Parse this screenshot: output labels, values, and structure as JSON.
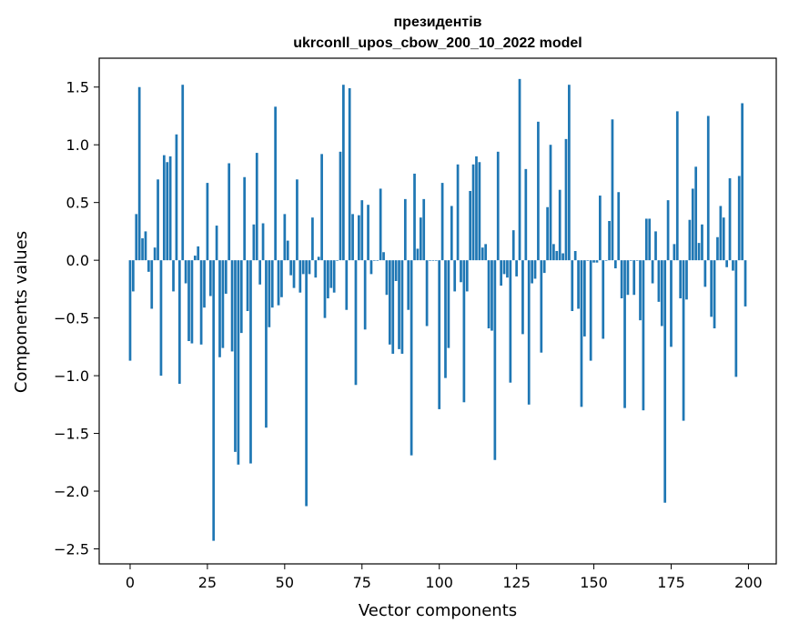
{
  "chart_data": {
    "type": "bar",
    "title_line1": "президентів",
    "title_line2": "ukrconll_upos_cbow_200_10_2022 model",
    "xlabel": "Vector components",
    "ylabel": "Components values",
    "xlim": [
      -10,
      209
    ],
    "ylim": [
      -2.63,
      1.75
    ],
    "xticks": [
      0,
      25,
      50,
      75,
      100,
      125,
      150,
      175,
      200
    ],
    "yticks": [
      -2.5,
      -2.0,
      -1.5,
      -1.0,
      -0.5,
      0.0,
      0.5,
      1.0,
      1.5
    ],
    "ytick_labels": [
      "−2.5",
      "−2.0",
      "−1.5",
      "−1.0",
      "−0.5",
      "0.0",
      "0.5",
      "1.0",
      "1.5"
    ],
    "bar_color": "#1f77b4",
    "grid": false,
    "values": [
      -0.87,
      -0.27,
      0.4,
      1.5,
      0.19,
      0.25,
      -0.1,
      -0.42,
      0.11,
      0.7,
      -1.0,
      0.91,
      0.85,
      0.9,
      -0.27,
      1.09,
      -1.07,
      1.52,
      -0.2,
      -0.7,
      -0.72,
      0.04,
      0.12,
      -0.73,
      -0.41,
      0.67,
      -0.31,
      -2.43,
      0.3,
      -0.84,
      -0.76,
      -0.29,
      0.84,
      -0.79,
      -1.66,
      -1.77,
      -0.63,
      0.72,
      -0.44,
      -1.76,
      0.31,
      0.93,
      -0.21,
      0.32,
      -1.45,
      -0.58,
      -0.41,
      1.33,
      -0.39,
      -0.32,
      0.4,
      0.17,
      -0.13,
      -0.24,
      0.7,
      -0.28,
      -0.12,
      -2.13,
      -0.12,
      0.37,
      -0.15,
      0.03,
      0.92,
      -0.5,
      -0.33,
      -0.24,
      -0.28,
      0.0,
      0.94,
      1.52,
      -0.43,
      1.49,
      0.4,
      -1.08,
      0.39,
      0.52,
      -0.6,
      0.48,
      -0.12,
      0.0,
      0.0,
      0.62,
      0.07,
      -0.3,
      -0.73,
      -0.81,
      -0.18,
      -0.77,
      -0.81,
      0.53,
      -0.43,
      -1.69,
      0.75,
      0.1,
      0.37,
      0.53,
      -0.57,
      0.0,
      0.0,
      0.0,
      -1.29,
      0.67,
      -1.02,
      -0.76,
      0.47,
      -0.27,
      0.83,
      -0.19,
      -1.23,
      -0.27,
      0.6,
      0.83,
      0.9,
      0.85,
      0.11,
      0.14,
      -0.59,
      -0.61,
      -1.73,
      0.94,
      -0.22,
      -0.12,
      -0.15,
      -1.06,
      0.26,
      -0.14,
      1.57,
      -0.64,
      0.79,
      -1.25,
      -0.2,
      -0.16,
      1.2,
      -0.8,
      -0.11,
      0.46,
      1.0,
      0.14,
      0.08,
      0.61,
      0.06,
      1.05,
      1.52,
      -0.44,
      0.08,
      -0.42,
      -1.27,
      -0.66,
      0.0,
      -0.87,
      -0.02,
      -0.02,
      0.56,
      -0.68,
      0.0,
      0.34,
      1.22,
      -0.07,
      0.59,
      -0.33,
      -1.28,
      -0.3,
      0.0,
      -0.3,
      0.0,
      -0.52,
      -1.3,
      0.36,
      0.36,
      -0.2,
      0.25,
      -0.36,
      -0.57,
      -2.1,
      0.52,
      -0.75,
      0.14,
      1.29,
      -0.33,
      -1.39,
      -0.34,
      0.35,
      0.62,
      0.81,
      0.15,
      0.31,
      -0.23,
      1.25,
      -0.49,
      -0.59,
      0.2,
      0.47,
      0.37,
      -0.06,
      0.71,
      -0.09,
      -1.01,
      0.73,
      1.36,
      -0.4
    ]
  }
}
